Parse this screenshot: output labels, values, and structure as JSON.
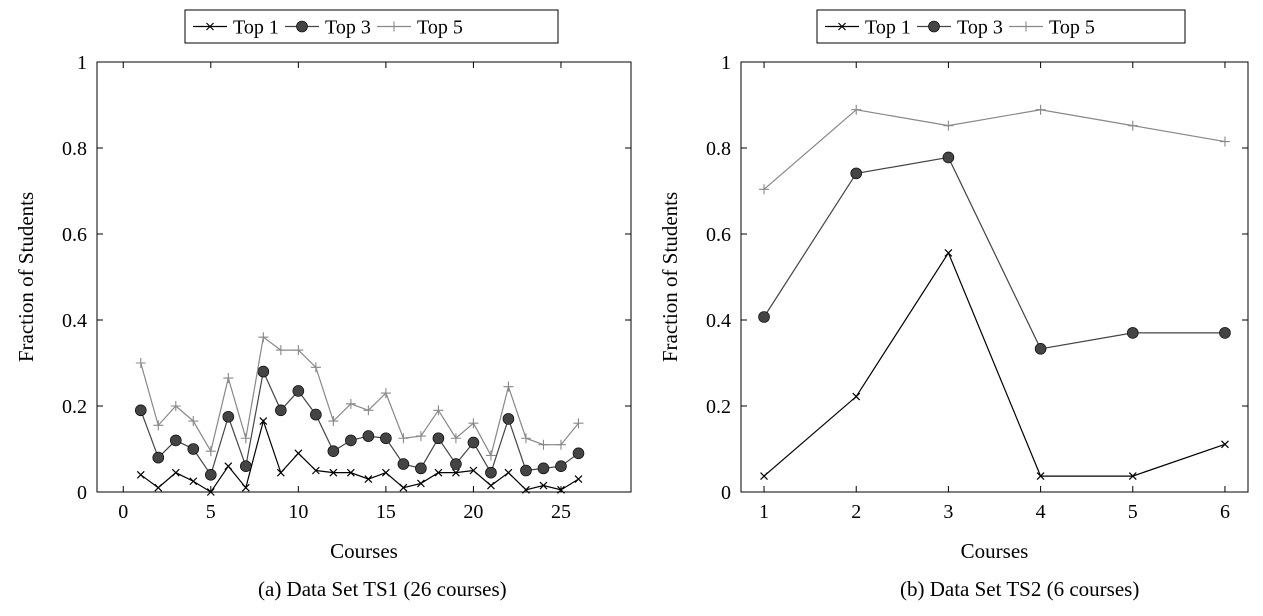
{
  "chart_data": [
    {
      "type": "line",
      "caption": "(a) Data Set TS1 (26 courses)",
      "xlabel": "Courses",
      "ylabel": "Fraction of Students",
      "xlim": [
        -1.5,
        29
      ],
      "ylim": [
        0,
        1
      ],
      "xticks": [
        0,
        5,
        10,
        15,
        20,
        25
      ],
      "xtick_labels": [
        "0",
        "5",
        "10",
        "15",
        "20",
        "25"
      ],
      "yticks": [
        0,
        0.2,
        0.4,
        0.6,
        0.8,
        1
      ],
      "ytick_labels": [
        "0",
        "0.2",
        "0.4",
        "0.6",
        "0.8",
        "1"
      ],
      "grid": false,
      "legend_position": "top-center",
      "x": [
        1,
        2,
        3,
        4,
        5,
        6,
        7,
        8,
        9,
        10,
        11,
        12,
        13,
        14,
        15,
        16,
        17,
        18,
        19,
        20,
        21,
        22,
        23,
        24,
        25,
        26
      ],
      "series": [
        {
          "name": "Top 1",
          "marker": "cross",
          "color": "#000000",
          "values": [
            0.04,
            0.01,
            0.045,
            0.025,
            0.0,
            0.06,
            0.01,
            0.165,
            0.045,
            0.09,
            0.05,
            0.045,
            0.045,
            0.03,
            0.045,
            0.01,
            0.02,
            0.045,
            0.045,
            0.05,
            0.015,
            0.045,
            0.005,
            0.015,
            0.005,
            0.03
          ]
        },
        {
          "name": "Top 3",
          "marker": "circle",
          "color": "#444444",
          "values": [
            0.19,
            0.08,
            0.12,
            0.1,
            0.04,
            0.175,
            0.06,
            0.28,
            0.19,
            0.235,
            0.18,
            0.095,
            0.12,
            0.13,
            0.125,
            0.065,
            0.055,
            0.125,
            0.065,
            0.115,
            0.045,
            0.17,
            0.05,
            0.055,
            0.06,
            0.09
          ]
        },
        {
          "name": "Top 5",
          "marker": "plus",
          "color": "#888888",
          "values": [
            0.3,
            0.155,
            0.2,
            0.165,
            0.095,
            0.265,
            0.125,
            0.36,
            0.33,
            0.33,
            0.29,
            0.165,
            0.205,
            0.19,
            0.23,
            0.125,
            0.13,
            0.19,
            0.125,
            0.16,
            0.085,
            0.245,
            0.125,
            0.11,
            0.11,
            0.16
          ]
        }
      ]
    },
    {
      "type": "line",
      "caption": "(b) Data Set TS2 (6 courses)",
      "xlabel": "Courses",
      "ylabel": "Fraction of Students",
      "xlim": [
        0.75,
        6.25
      ],
      "ylim": [
        0,
        1
      ],
      "xticks": [
        1,
        2,
        3,
        4,
        5,
        6
      ],
      "xtick_labels": [
        "1",
        "2",
        "3",
        "4",
        "5",
        "6"
      ],
      "yticks": [
        0,
        0.2,
        0.4,
        0.6,
        0.8,
        1
      ],
      "ytick_labels": [
        "0",
        "0.2",
        "0.4",
        "0.6",
        "0.8",
        "1"
      ],
      "grid": false,
      "legend_position": "top-center",
      "x": [
        1,
        2,
        3,
        4,
        5,
        6
      ],
      "series": [
        {
          "name": "Top 1",
          "marker": "cross",
          "color": "#000000",
          "values": [
            0.037,
            0.222,
            0.556,
            0.037,
            0.037,
            0.111
          ]
        },
        {
          "name": "Top 3",
          "marker": "circle",
          "color": "#444444",
          "values": [
            0.407,
            0.741,
            0.778,
            0.333,
            0.37,
            0.37
          ]
        },
        {
          "name": "Top 5",
          "marker": "plus",
          "color": "#888888",
          "values": [
            0.704,
            0.889,
            0.852,
            0.889,
            0.852,
            0.815
          ]
        }
      ]
    }
  ]
}
